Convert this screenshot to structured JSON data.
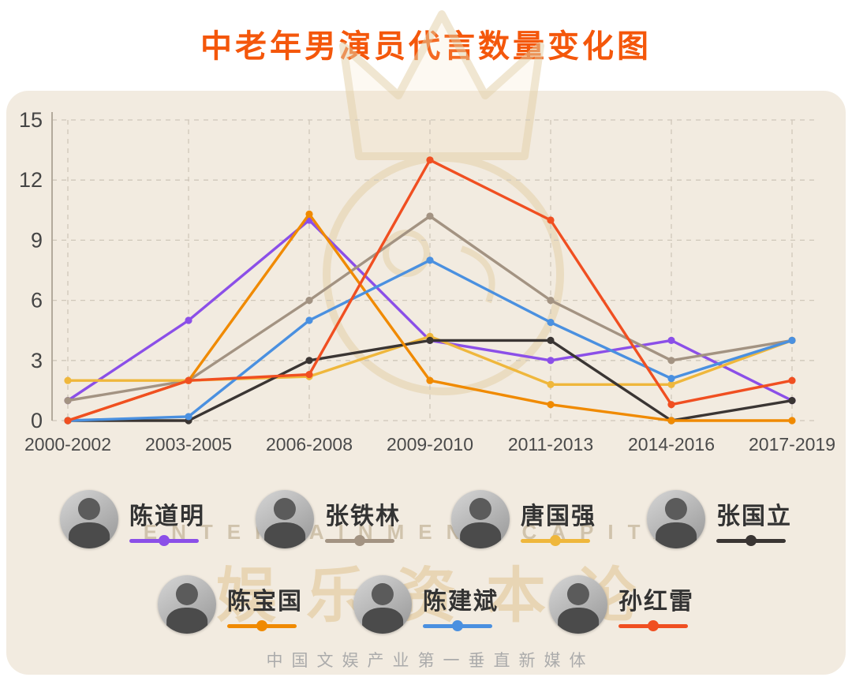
{
  "theme": {
    "accent": "#f4570b",
    "panel_bg": "#f2ebe0"
  },
  "title": "中老年男演员代言数量变化图",
  "watermark": {
    "brand_en": "ENTERTAINMENT CAPITAL",
    "brand_cn": "娱乐资本论",
    "tagline": "中国文娱产业第一垂直新媒体"
  },
  "legend_rows": [
    4,
    3
  ],
  "chart_data": {
    "type": "line",
    "title": "中老年男演员代言数量变化图",
    "categories": [
      "2000-2002",
      "2003-2005",
      "2006-2008",
      "2009-2010",
      "2011-2013",
      "2014-2016",
      "2017-2019"
    ],
    "y_ticks": [
      0,
      3,
      6,
      9,
      12,
      15
    ],
    "ylim": [
      0,
      15
    ],
    "grid": true,
    "legend_position": "bottom",
    "series": [
      {
        "name": "陈道明",
        "color": "#8b4fe8",
        "values": [
          1,
          5,
          10,
          4,
          3,
          4,
          1
        ]
      },
      {
        "name": "张铁林",
        "color": "#a39382",
        "values": [
          1,
          2,
          6,
          10.2,
          6,
          3,
          4
        ]
      },
      {
        "name": "唐国强",
        "color": "#efb73c",
        "values": [
          2,
          2,
          2.2,
          4.2,
          1.8,
          1.8,
          4
        ]
      },
      {
        "name": "张国立",
        "color": "#3a3533",
        "values": [
          0,
          0,
          3,
          4,
          4,
          0,
          1
        ]
      },
      {
        "name": "陈宝国",
        "color": "#f08a00",
        "values": [
          0,
          2,
          10.3,
          2,
          0.8,
          0,
          0
        ]
      },
      {
        "name": "陈建斌",
        "color": "#4a90e0",
        "values": [
          0,
          0.2,
          5,
          8,
          4.9,
          2.1,
          4
        ]
      },
      {
        "name": "孙红雷",
        "color": "#f04f21",
        "values": [
          0,
          2,
          2.3,
          13,
          10,
          0.8,
          2
        ]
      }
    ]
  }
}
